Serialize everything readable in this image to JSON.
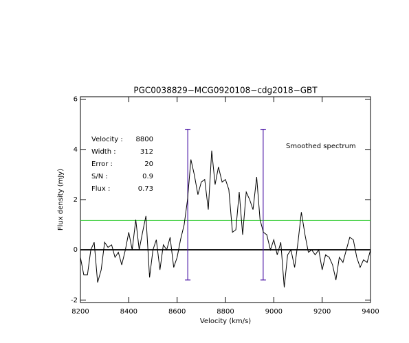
{
  "chart_data": {
    "type": "line",
    "title": "PGC0038829−MCG0920108−cdg2018−GBT",
    "x_label": "Velocity (km/s)",
    "y_label": "Flux density (mJy)",
    "annotation": "Smoothed spectrum",
    "stats": [
      {
        "label": "Velocity :",
        "value": 8800
      },
      {
        "label": "Width :",
        "value": 312
      },
      {
        "label": "Error :",
        "value": 20
      },
      {
        "label": "S/N :",
        "value": 0.9
      },
      {
        "label": "Flux :",
        "value": 0.73
      }
    ],
    "x": [
      8200,
      8214,
      8229,
      8243,
      8257,
      8271,
      8286,
      8300,
      8314,
      8329,
      8343,
      8357,
      8371,
      8386,
      8400,
      8414,
      8429,
      8443,
      8457,
      8471,
      8486,
      8500,
      8514,
      8529,
      8543,
      8557,
      8571,
      8586,
      8600,
      8614,
      8629,
      8643,
      8657,
      8671,
      8686,
      8700,
      8714,
      8729,
      8743,
      8757,
      8771,
      8786,
      8800,
      8814,
      8829,
      8843,
      8857,
      8871,
      8886,
      8900,
      8914,
      8929,
      8943,
      8957,
      8971,
      8986,
      9000,
      9014,
      9029,
      9043,
      9057,
      9071,
      9086,
      9100,
      9114,
      9129,
      9143,
      9157,
      9171,
      9186,
      9200,
      9214,
      9229,
      9243,
      9257,
      9271,
      9286,
      9300,
      9314,
      9329,
      9343,
      9357,
      9371,
      9386,
      9400
    ],
    "series": [
      {
        "color": "#000000",
        "values": [
          -0.3,
          -1.0,
          -1.0,
          0.0,
          0.3,
          -1.3,
          -0.8,
          0.3,
          0.1,
          0.2,
          -0.3,
          -0.1,
          -0.6,
          0.0,
          0.7,
          0.0,
          1.2,
          0.0,
          0.7,
          1.35,
          -1.1,
          0.0,
          0.4,
          -0.8,
          0.2,
          0.0,
          0.5,
          -0.7,
          -0.3,
          0.4,
          1.0,
          2.0,
          3.6,
          3.0,
          2.2,
          2.7,
          2.8,
          1.6,
          3.95,
          2.6,
          3.3,
          2.7,
          2.8,
          2.4,
          0.7,
          0.8,
          2.3,
          0.6,
          2.3,
          2.0,
          1.6,
          2.9,
          1.2,
          0.7,
          0.6,
          0.0,
          0.4,
          -0.2,
          0.3,
          -1.5,
          -0.2,
          0.0,
          -0.7,
          0.3,
          1.5,
          0.6,
          -0.1,
          0.0,
          -0.2,
          0.0,
          -0.8,
          -0.2,
          -0.3,
          -0.6,
          -1.2,
          -0.3,
          -0.5,
          0.0,
          0.5,
          0.4,
          -0.3,
          -0.7,
          -0.4,
          -0.5,
          0.0
        ]
      }
    ],
    "markers": {
      "x": [
        8644,
        8956
      ],
      "span": [
        -1.2,
        4.8
      ],
      "color": "#5522aa"
    },
    "level": {
      "value": 1.17,
      "color": "#33cc33"
    },
    "xlim": [
      8200,
      9400
    ],
    "xticks": [
      8200,
      8400,
      8600,
      8800,
      9000,
      9200,
      9400
    ],
    "ylim": [
      -2.1,
      6.1
    ],
    "yticks": [
      -2,
      0,
      2,
      4,
      6
    ],
    "text_color": "#4411aa"
  }
}
